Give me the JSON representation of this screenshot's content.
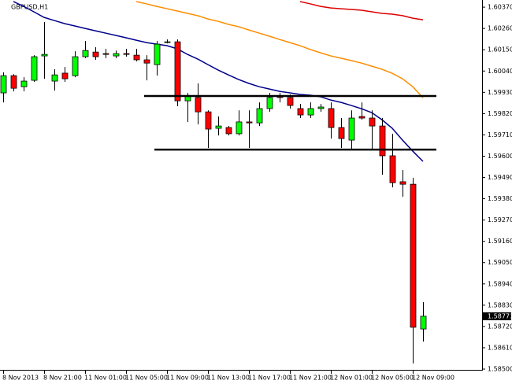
{
  "chart_data": {
    "type": "candlestick",
    "title": "GBPUSD,H1",
    "categories": [
      "8 Nov 2013",
      null,
      null,
      null,
      "8 Nov 21:00",
      null,
      null,
      null,
      "11 Nov 01:00",
      null,
      null,
      null,
      "11 Nov 05:00",
      null,
      null,
      null,
      "11 Nov 09:00",
      null,
      null,
      null,
      "11 Nov 13:00",
      null,
      null,
      null,
      "11 Nov 17:00",
      null,
      null,
      null,
      "11 Nov 21:00",
      null,
      null,
      null,
      "12 Nov 01:00",
      null,
      null,
      null,
      "12 Nov 05:00",
      null,
      null,
      null,
      "12 Nov 09:00",
      null
    ],
    "open": [
      1.59927,
      1.60016,
      1.59959,
      1.59992,
      1.60118,
      1.59988,
      1.60029,
      1.60016,
      1.60114,
      1.60138,
      1.6013,
      1.60118,
      1.6013,
      1.60122,
      1.60098,
      1.60073,
      1.60187,
      1.60191,
      1.59886,
      1.59903,
      1.59829,
      1.59744,
      1.59748,
      1.59716,
      1.59777,
      1.59772,
      1.59846,
      1.59911,
      1.59903,
      1.59846,
      1.59813,
      1.59846,
      1.59846,
      1.59748,
      1.59683,
      1.59805,
      1.59797,
      1.59756,
      1.59602,
      1.59468,
      1.59455,
      1.58707
    ],
    "high": [
      1.60033,
      1.60024,
      1.60008,
      1.60122,
      1.60293,
      1.60049,
      1.60061,
      1.60142,
      1.60195,
      1.60163,
      1.60155,
      1.60146,
      1.60155,
      1.60155,
      1.60122,
      1.60195,
      1.60203,
      1.60203,
      1.59927,
      1.59976,
      1.59837,
      1.59805,
      1.59756,
      1.59837,
      1.59837,
      1.59878,
      1.59927,
      1.59927,
      1.59919,
      1.5987,
      1.59878,
      1.5987,
      1.59878,
      1.59797,
      1.59837,
      1.59878,
      1.59837,
      1.59797,
      1.59716,
      1.59529,
      1.59488,
      1.58846
    ],
    "low": [
      1.59878,
      1.59935,
      1.59935,
      1.59984,
      1.6,
      1.59939,
      1.59984,
      1.60008,
      1.60106,
      1.60098,
      1.60106,
      1.60106,
      1.60114,
      1.6009,
      1.59992,
      1.60016,
      1.60183,
      1.59858,
      1.59777,
      1.59764,
      1.59642,
      1.59707,
      1.59707,
      1.59707,
      1.59642,
      1.59756,
      1.59829,
      1.59878,
      1.59846,
      1.59797,
      1.59797,
      1.59829,
      1.59691,
      1.59642,
      1.59634,
      1.59789,
      1.59634,
      1.59504,
      1.59439,
      1.5939,
      1.58529,
      1.58642
    ],
    "close": [
      1.60016,
      1.59951,
      1.59988,
      1.60114,
      1.60126,
      1.6002,
      1.6,
      1.60114,
      1.60146,
      1.60114,
      1.60126,
      1.6013,
      1.60126,
      1.60098,
      1.60081,
      1.60179,
      1.60191,
      1.59886,
      1.59911,
      1.59829,
      1.5974,
      1.59756,
      1.59716,
      1.59777,
      1.59772,
      1.59846,
      1.59903,
      1.59903,
      1.59862,
      1.59813,
      1.59846,
      1.59854,
      1.59748,
      1.59691,
      1.59797,
      1.59797,
      1.59756,
      1.59602,
      1.59463,
      1.59455,
      1.58716,
      1.58773
    ],
    "up_color": "#00ff00",
    "down_color": "#ff0000",
    "lines": [
      {
        "color": "#00008b",
        "values": [
          null,
          1.60399,
          1.60374,
          1.60346,
          1.60317,
          1.60301,
          1.60285,
          1.60273,
          1.6026,
          1.60248,
          1.60236,
          1.60224,
          1.60212,
          1.60199,
          1.60187,
          1.60179,
          1.60171,
          1.60155,
          1.60126,
          1.60102,
          1.60073,
          1.60045,
          1.6002,
          1.59996,
          1.59976,
          1.59959,
          1.59947,
          1.59935,
          1.59927,
          1.59919,
          1.59915,
          1.59907,
          1.5989,
          1.59878,
          1.59862,
          1.59845,
          1.59825,
          1.59788,
          1.59744,
          1.59683,
          1.59626,
          1.59573
        ]
      },
      {
        "color": "#ff8c00",
        "values": [
          null,
          null,
          null,
          null,
          null,
          null,
          null,
          null,
          null,
          null,
          null,
          null,
          null,
          1.60399,
          1.60387,
          1.60374,
          1.60362,
          1.6035,
          1.60338,
          1.60326,
          1.60309,
          1.60297,
          1.60281,
          1.60269,
          1.60252,
          1.60236,
          1.6022,
          1.60203,
          1.60187,
          1.60171,
          1.60151,
          1.60134,
          1.60118,
          1.60106,
          1.60094,
          1.60081,
          1.60065,
          1.60049,
          1.60028,
          1.6,
          1.59959,
          1.59902
        ]
      },
      {
        "color": "#dd0000",
        "values": [
          null,
          null,
          null,
          null,
          null,
          null,
          null,
          null,
          null,
          null,
          null,
          null,
          null,
          null,
          null,
          null,
          null,
          null,
          null,
          null,
          null,
          null,
          null,
          null,
          null,
          null,
          null,
          null,
          null,
          1.60399,
          1.60387,
          1.60374,
          1.60366,
          1.60362,
          1.60358,
          1.60354,
          1.60346,
          1.60338,
          1.60334,
          1.60326,
          1.60313,
          1.60305
        ]
      }
    ],
    "levels": [
      {
        "value": 1.59911,
        "start": 14
      },
      {
        "value": 1.59634,
        "start": 15
      }
    ],
    "bid": 1.58773,
    "ylim": [
      1.58496,
      1.60407
    ],
    "yticks": [
      {
        "value": 1.6037,
        "label": "1.60370"
      },
      {
        "value": 1.6026,
        "label": "1.60260"
      },
      {
        "value": 1.6015,
        "label": "1.60150"
      },
      {
        "value": 1.6004,
        "label": "1.60040"
      },
      {
        "value": 1.5993,
        "label": "1.59930"
      },
      {
        "value": 1.5982,
        "label": "1.59820"
      },
      {
        "value": 1.5971,
        "label": "1.59710"
      },
      {
        "value": 1.596,
        "label": "1.59600"
      },
      {
        "value": 1.5949,
        "label": "1.59490"
      },
      {
        "value": 1.5938,
        "label": "1.59380"
      },
      {
        "value": 1.5927,
        "label": "1.59270"
      },
      {
        "value": 1.5916,
        "label": "1.59160"
      },
      {
        "value": 1.5905,
        "label": "1.59050"
      },
      {
        "value": 1.5894,
        "label": "1.58940"
      },
      {
        "value": 1.5883,
        "label": "1.58830"
      },
      {
        "value": 1.5872,
        "label": "1.58720"
      },
      {
        "value": 1.5861,
        "label": "1.58610"
      },
      {
        "value": 1.585,
        "label": "1.58500"
      }
    ]
  }
}
